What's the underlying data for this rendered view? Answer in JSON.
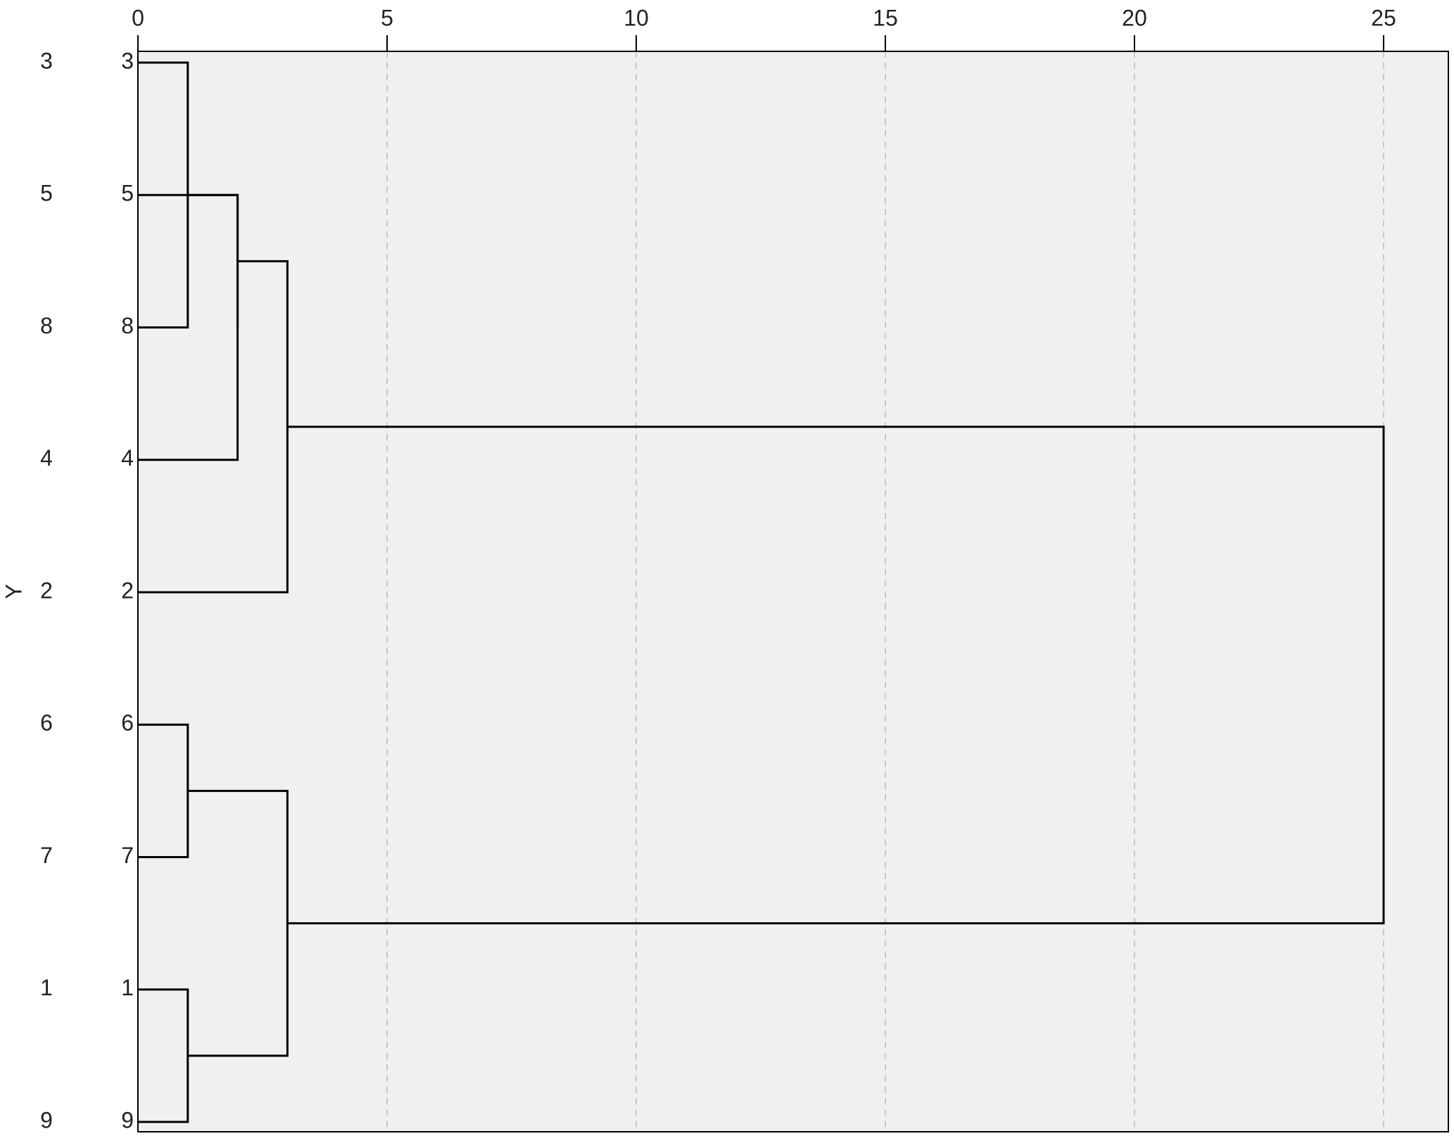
{
  "chart_data": {
    "type": "dendrogram",
    "y_label": "Y",
    "categories": [
      "3",
      "5",
      "8",
      "4",
      "2",
      "6",
      "7",
      "1",
      "9"
    ],
    "merges": [
      [
        0,
        2,
        1
      ],
      [
        1,
        3,
        2
      ],
      [
        9,
        10,
        2
      ],
      [
        11,
        4,
        3
      ],
      [
        5,
        6,
        1
      ],
      [
        7,
        8,
        1
      ],
      [
        13,
        14,
        3
      ],
      [
        12,
        15,
        25
      ]
    ],
    "xlim": [
      0,
      26.3
    ],
    "xticks": [
      0,
      5,
      10,
      15,
      20,
      25
    ],
    "grid": true,
    "color": "#000000"
  }
}
